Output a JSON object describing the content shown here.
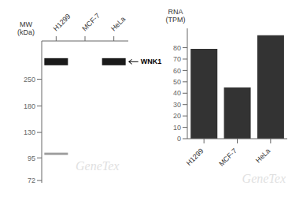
{
  "chart_data": [
    {
      "type": "blot",
      "categories": [
        "H1299",
        "MCF-7",
        "HeLa"
      ],
      "ylabel": "MW\n(kDa)",
      "log": "y",
      "ylim": [
        70,
        400
      ],
      "yticks": [
        250,
        180,
        130,
        95,
        72
      ],
      "series": [
        {
          "name": "WNK1",
          "color": "#1a1a1a",
          "values": [
            310,
            null,
            310
          ]
        },
        {
          "color": "#a0a0a0",
          "values": [
            100,
            null,
            null
          ]
        }
      ],
      "annotations": [
        "GeneTex"
      ]
    },
    {
      "type": "bar",
      "categories": [
        "H1299",
        "MCF-7",
        "HeLa"
      ],
      "values": [
        79,
        45,
        91
      ],
      "color": "#333333",
      "ylabel": "RNA\n(TPM)",
      "ylim": [
        0,
        97
      ],
      "yticks": [
        0,
        10,
        20,
        30,
        40,
        50,
        60,
        70,
        80
      ],
      "annotations": [
        "GeneTex"
      ]
    }
  ]
}
